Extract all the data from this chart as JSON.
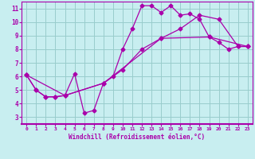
{
  "xlabel": "Windchill (Refroidissement éolien,°C)",
  "xlim": [
    -0.5,
    23.5
  ],
  "ylim": [
    2.5,
    11.5
  ],
  "xticks": [
    0,
    1,
    2,
    3,
    4,
    5,
    6,
    7,
    8,
    9,
    10,
    11,
    12,
    13,
    14,
    15,
    16,
    17,
    18,
    19,
    20,
    21,
    22,
    23
  ],
  "yticks": [
    3,
    4,
    5,
    6,
    7,
    8,
    9,
    10,
    11
  ],
  "bg_color": "#c8eef0",
  "line_color": "#aa00aa",
  "grid_color": "#99cccc",
  "line1_x": [
    0,
    1,
    2,
    3,
    4,
    5,
    6,
    7,
    8,
    9,
    10,
    11,
    12,
    13,
    14,
    15,
    16,
    17,
    18,
    19,
    20,
    21,
    22,
    23
  ],
  "line1_y": [
    6.1,
    5.0,
    4.5,
    4.5,
    4.6,
    6.2,
    3.3,
    3.5,
    5.5,
    6.0,
    8.0,
    9.5,
    11.2,
    11.2,
    10.7,
    11.2,
    10.5,
    10.6,
    10.2,
    8.9,
    8.5,
    8.0,
    8.2,
    8.2
  ],
  "line2_x": [
    0,
    1,
    2,
    3,
    4,
    8,
    10,
    12,
    14,
    16,
    18,
    20,
    22,
    23
  ],
  "line2_y": [
    6.1,
    5.0,
    4.5,
    4.5,
    4.6,
    5.5,
    6.5,
    8.0,
    8.8,
    9.5,
    10.5,
    10.2,
    8.2,
    8.2
  ],
  "line3_x": [
    0,
    4,
    8,
    14,
    19,
    23
  ],
  "line3_y": [
    6.1,
    4.6,
    5.5,
    8.8,
    8.9,
    8.2
  ],
  "marker": "D",
  "markersize": 2.5,
  "linewidth": 0.9
}
